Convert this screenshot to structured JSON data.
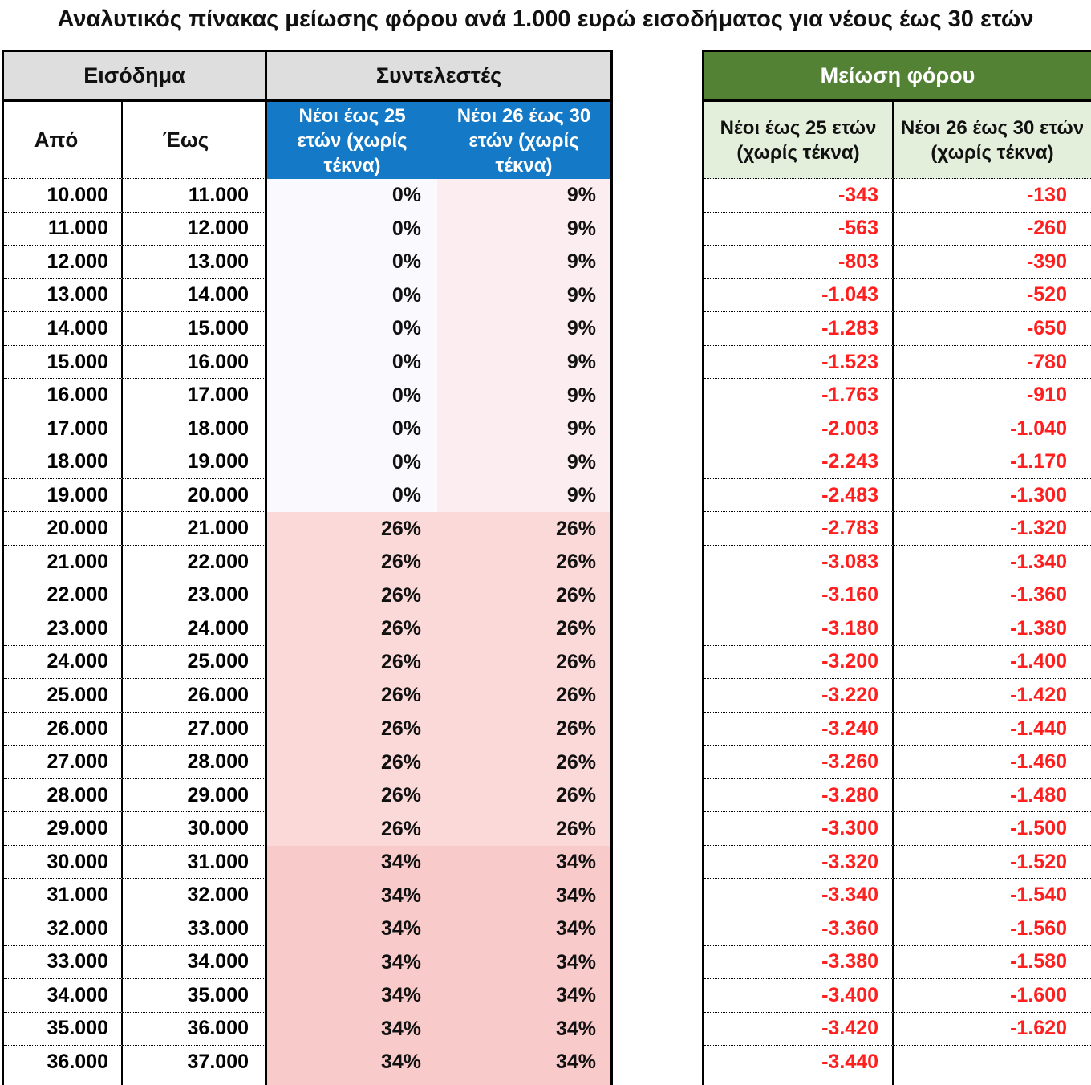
{
  "title": "Αναλυτικός πίνακας μείωσης φόρου ανά 1.000 ευρώ εισοδήματος για νέους έως 30 ετών",
  "left_table": {
    "income_header": "Εισόδημα",
    "rates_header": "Συντελεστές",
    "from_label": "Από",
    "to_label": "Έως",
    "under25_label": "Νέοι έως 25 ετών (χωρίς τέκνα)",
    "age26to30_label": "Νέοι 26 έως 30 ετών (χωρίς τέκνα)"
  },
  "right_table": {
    "header": "Μείωση φόρου",
    "under25_label": "Νέοι έως 25 ετών (χωρίς τέκνα)",
    "age26to30_label": "Νέοι 26 έως 30 ετών (χωρίς τέκνα)"
  },
  "colors": {
    "header_gray": "#DEDEDE",
    "subheader_blue": "#1479C6",
    "header_green": "#548235",
    "subheader_light_green": "#E3EEDB",
    "rate0_bg": "#F9F9FE",
    "rate9_bg": "#FCEDF0",
    "rate26_bg": "#FBD9D9",
    "rate34_bg": "#F9CACA",
    "negative_value_red": "#FF1F1F"
  },
  "chart_data": {
    "type": "table",
    "title": "Αναλυτικός πίνακας μείωσης φόρου ανά 1.000 ευρώ εισοδήματος για νέους έως 30 ετών",
    "columns": [
      "Εισόδημα Από",
      "Εισόδημα Έως",
      "Συντελεστές: Νέοι έως 25 ετών (χωρίς τέκνα)",
      "Συντελεστές: Νέοι 26 έως 30 ετών (χωρίς τέκνα)",
      "Μείωση φόρου: Νέοι έως 25 ετών (χωρίς τέκνα)",
      "Μείωση φόρου: Νέοι 26 έως 30 ετών (χωρίς τέκνα)"
    ],
    "rows": [
      [
        "10.000",
        "11.000",
        "0%",
        "9%",
        "-343",
        "-130"
      ],
      [
        "11.000",
        "12.000",
        "0%",
        "9%",
        "-563",
        "-260"
      ],
      [
        "12.000",
        "13.000",
        "0%",
        "9%",
        "-803",
        "-390"
      ],
      [
        "13.000",
        "14.000",
        "0%",
        "9%",
        "-1.043",
        "-520"
      ],
      [
        "14.000",
        "15.000",
        "0%",
        "9%",
        "-1.283",
        "-650"
      ],
      [
        "15.000",
        "16.000",
        "0%",
        "9%",
        "-1.523",
        "-780"
      ],
      [
        "16.000",
        "17.000",
        "0%",
        "9%",
        "-1.763",
        "-910"
      ],
      [
        "17.000",
        "18.000",
        "0%",
        "9%",
        "-2.003",
        "-1.040"
      ],
      [
        "18.000",
        "19.000",
        "0%",
        "9%",
        "-2.243",
        "-1.170"
      ],
      [
        "19.000",
        "20.000",
        "0%",
        "9%",
        "-2.483",
        "-1.300"
      ],
      [
        "20.000",
        "21.000",
        "26%",
        "26%",
        "-2.783",
        "-1.320"
      ],
      [
        "21.000",
        "22.000",
        "26%",
        "26%",
        "-3.083",
        "-1.340"
      ],
      [
        "22.000",
        "23.000",
        "26%",
        "26%",
        "-3.160",
        "-1.360"
      ],
      [
        "23.000",
        "24.000",
        "26%",
        "26%",
        "-3.180",
        "-1.380"
      ],
      [
        "24.000",
        "25.000",
        "26%",
        "26%",
        "-3.200",
        "-1.400"
      ],
      [
        "25.000",
        "26.000",
        "26%",
        "26%",
        "-3.220",
        "-1.420"
      ],
      [
        "26.000",
        "27.000",
        "26%",
        "26%",
        "-3.240",
        "-1.440"
      ],
      [
        "27.000",
        "28.000",
        "26%",
        "26%",
        "-3.260",
        "-1.460"
      ],
      [
        "28.000",
        "29.000",
        "26%",
        "26%",
        "-3.280",
        "-1.480"
      ],
      [
        "29.000",
        "30.000",
        "26%",
        "26%",
        "-3.300",
        "-1.500"
      ],
      [
        "30.000",
        "31.000",
        "34%",
        "34%",
        "-3.320",
        "-1.520"
      ],
      [
        "31.000",
        "32.000",
        "34%",
        "34%",
        "-3.340",
        "-1.540"
      ],
      [
        "32.000",
        "33.000",
        "34%",
        "34%",
        "-3.360",
        "-1.560"
      ],
      [
        "33.000",
        "34.000",
        "34%",
        "34%",
        "-3.380",
        "-1.580"
      ],
      [
        "34.000",
        "35.000",
        "34%",
        "34%",
        "-3.400",
        "-1.600"
      ],
      [
        "35.000",
        "36.000",
        "34%",
        "34%",
        "-3.420",
        "-1.620"
      ],
      [
        "36.000",
        "37.000",
        "34%",
        "34%",
        "-3.440",
        ""
      ]
    ]
  }
}
